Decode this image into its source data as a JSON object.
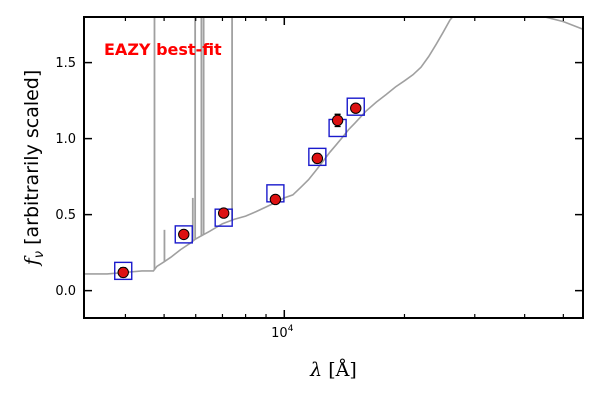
{
  "chart_data": {
    "type": "scatter",
    "title": "",
    "annotation": "EAZY best-fit",
    "annotation_color": "#ff0000",
    "xlabel_symbol": "λ",
    "xlabel_unit": "[Å]",
    "xlabel": "λ [Å]",
    "ylabel_symbol": "f",
    "ylabel_subscript": "ν",
    "ylabel_text": "[arbitrarily scaled]",
    "ylabel": "f_ν [arbitrarily scaled]",
    "xscale": "log",
    "xlim": [
      3150,
      56000
    ],
    "ylim": [
      -0.18,
      1.8
    ],
    "x_tick_labels": [
      {
        "value": 10000,
        "base": "10",
        "exponent": "4"
      }
    ],
    "x_minor_ticks": [
      4000,
      5000,
      6000,
      7000,
      8000,
      9000,
      20000,
      30000,
      40000,
      50000
    ],
    "y_ticks": [
      0.0,
      0.5,
      1.0,
      1.5
    ],
    "y_tick_labels": [
      "0.0",
      "0.5",
      "1.0",
      "1.5"
    ],
    "grid": false,
    "colors": {
      "sed": "#a0a0a0",
      "points_fill": "#dd1111",
      "points_edge": "#000000",
      "model_boxes": "#1a1acc",
      "axes": "#000000"
    },
    "series": [
      {
        "kind": "sed",
        "points": [
          [
            3150,
            0.11
          ],
          [
            3600,
            0.11
          ],
          [
            4000,
            0.12
          ],
          [
            4400,
            0.13
          ],
          [
            4700,
            0.13
          ],
          [
            4800,
            0.16
          ],
          [
            5000,
            0.19
          ],
          [
            5200,
            0.22
          ],
          [
            5500,
            0.27
          ],
          [
            5800,
            0.31
          ],
          [
            6000,
            0.34
          ],
          [
            6500,
            0.39
          ],
          [
            7000,
            0.44
          ],
          [
            7500,
            0.47
          ],
          [
            8000,
            0.49
          ],
          [
            8500,
            0.52
          ],
          [
            9000,
            0.55
          ],
          [
            9500,
            0.58
          ],
          [
            10000,
            0.61
          ],
          [
            10500,
            0.63
          ],
          [
            11000,
            0.68
          ],
          [
            11500,
            0.73
          ],
          [
            12000,
            0.79
          ],
          [
            12500,
            0.85
          ],
          [
            13000,
            0.91
          ],
          [
            13500,
            0.96
          ],
          [
            14000,
            1.01
          ],
          [
            14500,
            1.06
          ],
          [
            15000,
            1.1
          ],
          [
            15500,
            1.14
          ],
          [
            16000,
            1.18
          ],
          [
            17000,
            1.24
          ],
          [
            18000,
            1.29
          ],
          [
            19000,
            1.34
          ],
          [
            20000,
            1.38
          ],
          [
            21000,
            1.42
          ],
          [
            22000,
            1.47
          ],
          [
            23000,
            1.54
          ],
          [
            24000,
            1.62
          ],
          [
            25000,
            1.7
          ],
          [
            26000,
            1.78
          ],
          [
            27000,
            1.83
          ],
          [
            30000,
            1.85
          ],
          [
            35000,
            1.84
          ],
          [
            40000,
            1.82
          ],
          [
            45000,
            1.8
          ],
          [
            50000,
            1.77
          ],
          [
            56000,
            1.72
          ]
        ],
        "lines": [
          {
            "x": 4730,
            "y_top": 1.8
          },
          {
            "x": 5010,
            "y_top": 0.4
          },
          {
            "x": 5900,
            "y_top": 0.61
          },
          {
            "x": 5980,
            "y_top": 1.8
          },
          {
            "x": 6200,
            "y_top": 1.8
          },
          {
            "x": 6280,
            "y_top": 1.8
          },
          {
            "x": 7400,
            "y_top": 1.8
          }
        ]
      },
      {
        "name": "model photometry",
        "kind": "boxes",
        "points": [
          [
            3950,
            0.13
          ],
          [
            5600,
            0.37
          ],
          [
            7050,
            0.48
          ],
          [
            9500,
            0.64
          ],
          [
            12100,
            0.88
          ],
          [
            13600,
            1.07
          ],
          [
            15100,
            1.21
          ]
        ]
      },
      {
        "name": "observed photometry",
        "kind": "points",
        "points": [
          [
            3950,
            0.12
          ],
          [
            5600,
            0.37
          ],
          [
            7050,
            0.51
          ],
          [
            9500,
            0.6
          ],
          [
            12100,
            0.87
          ],
          [
            13600,
            1.12
          ],
          [
            15100,
            1.2
          ]
        ],
        "yerr": [
          0.03,
          0.02,
          0.02,
          0.02,
          0.03,
          0.04,
          0.02
        ]
      }
    ]
  }
}
